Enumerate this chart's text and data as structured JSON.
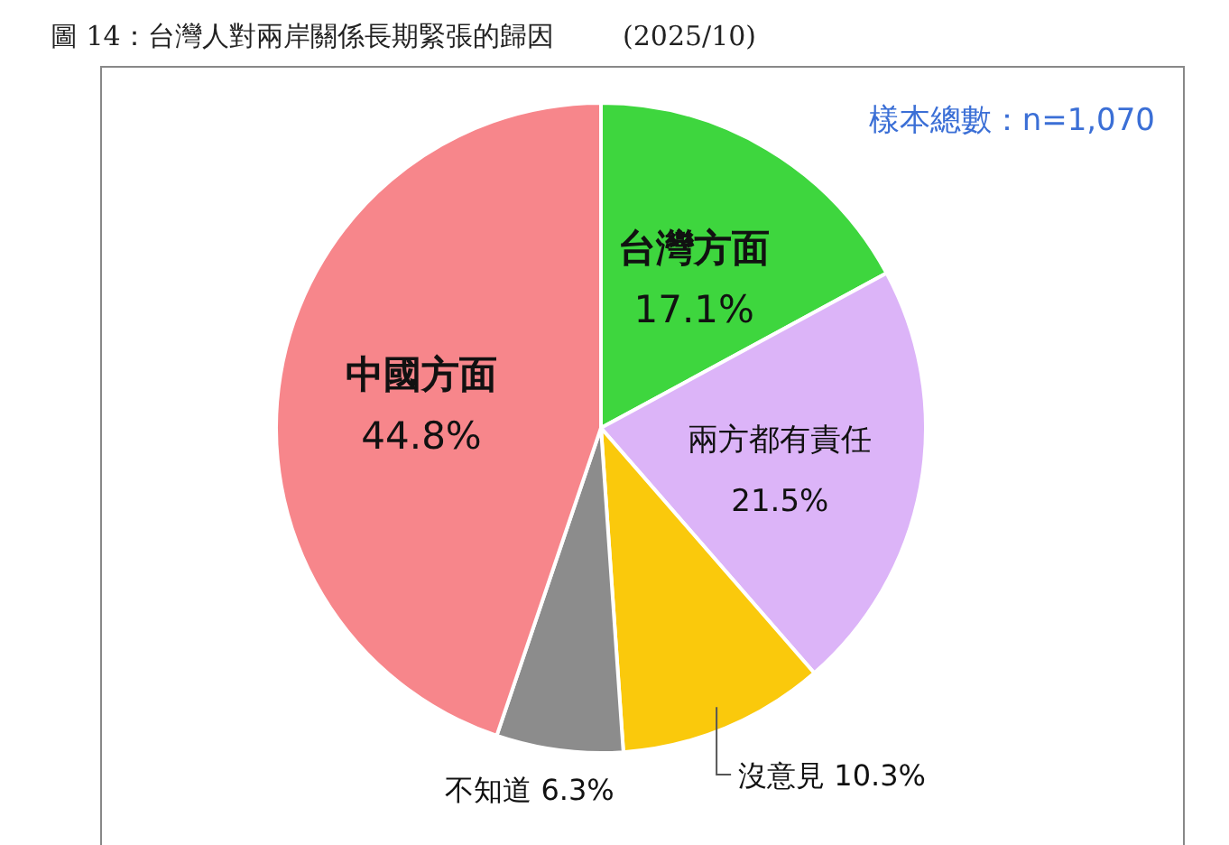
{
  "chart_data": {
    "type": "pie",
    "title": "圖 14：台灣人對兩岸關係長期緊張的歸因",
    "subtitle": "(2025/10)",
    "annotations": [
      "樣本總數：n=1,070"
    ],
    "categories": [
      "台灣方面",
      "兩方都有責任",
      "沒意見",
      "不知道",
      "中國方面"
    ],
    "values": [
      17.1,
      21.5,
      10.3,
      6.3,
      44.8
    ],
    "colors": [
      "#3ed63e",
      "#dcb4f8",
      "#fac90c",
      "#8c8c8c",
      "#f7868b"
    ],
    "value_labels": [
      "17.1%",
      "21.5%",
      "10.3%",
      "6.3%",
      "44.8%"
    ]
  }
}
